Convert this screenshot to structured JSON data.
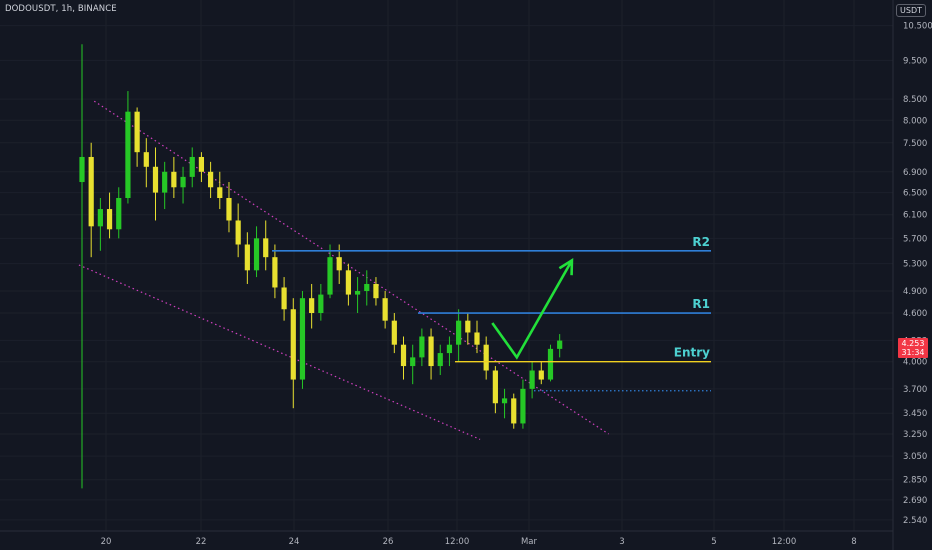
{
  "header": {
    "symbol": "DODOUSDT, 1h, BINANCE",
    "currency": "USDT"
  },
  "price_badge": {
    "value": "4.253",
    "countdown": "31:34"
  },
  "colors": {
    "background": "#131722",
    "bull": "#26c826",
    "bear": "#e8e030",
    "resistance": "#2f7fd8",
    "entry": "#f0d020",
    "trendline": "#d040c0",
    "arrow": "#22e03a",
    "label": "#4dd0d0"
  },
  "chart_data": {
    "type": "candlestick",
    "yaxis": {
      "scale": "log",
      "ylim": [
        2.46,
        11.3
      ],
      "ticks": [
        "10.500",
        "9.500",
        "8.500",
        "8.000",
        "7.500",
        "6.900",
        "6.500",
        "6.100",
        "5.700",
        "5.300",
        "4.900",
        "4.600",
        "4.253",
        "4.000",
        "3.700",
        "3.450",
        "3.250",
        "3.050",
        "2.850",
        "2.690",
        "2.540"
      ]
    },
    "xaxis": {
      "ticks": [
        "20",
        "22",
        "24",
        "26",
        "12:00",
        "Mar",
        "3",
        "5",
        "12:00",
        "8"
      ]
    },
    "levels": [
      {
        "label": "R2",
        "price": 5.5
      },
      {
        "label": "R1",
        "price": 4.6
      },
      {
        "label": "Entry",
        "price": 4.0
      }
    ],
    "support_dotted": 3.68,
    "trendlines": [
      {
        "name": "upper",
        "from": [
          "19 Feb 00:00",
          8.45
        ],
        "to": [
          "5 Mar 00:00",
          3.25
        ]
      },
      {
        "name": "lower",
        "from": [
          "18 Feb 14:00",
          5.28
        ],
        "to": [
          "1 Mar 12:00",
          3.2
        ]
      }
    ],
    "projection_path": [
      [
        "1 Mar 20:00",
        4.47
      ],
      [
        "2 Mar 12:00",
        4.05
      ],
      [
        "4 Mar 00:00",
        5.35
      ]
    ],
    "series": [
      {
        "t": 0,
        "o": 6.7,
        "h": 9.95,
        "l": 2.78,
        "c": 7.2
      },
      {
        "t": 6,
        "o": 7.2,
        "h": 7.5,
        "l": 5.4,
        "c": 5.9
      },
      {
        "t": 12,
        "o": 5.9,
        "h": 6.4,
        "l": 5.5,
        "c": 6.2
      },
      {
        "t": 18,
        "o": 6.2,
        "h": 6.5,
        "l": 5.7,
        "c": 5.85
      },
      {
        "t": 24,
        "o": 5.85,
        "h": 6.6,
        "l": 5.7,
        "c": 6.4
      },
      {
        "t": 30,
        "o": 6.4,
        "h": 8.7,
        "l": 6.3,
        "c": 8.2
      },
      {
        "t": 36,
        "o": 8.2,
        "h": 8.3,
        "l": 7.0,
        "c": 7.3
      },
      {
        "t": 42,
        "o": 7.3,
        "h": 7.6,
        "l": 6.6,
        "c": 7.0
      },
      {
        "t": 48,
        "o": 7.0,
        "h": 7.4,
        "l": 6.0,
        "c": 6.5
      },
      {
        "t": 54,
        "o": 6.5,
        "h": 7.1,
        "l": 6.2,
        "c": 6.9
      },
      {
        "t": 60,
        "o": 6.9,
        "h": 7.2,
        "l": 6.4,
        "c": 6.6
      },
      {
        "t": 66,
        "o": 6.6,
        "h": 7.0,
        "l": 6.3,
        "c": 6.8
      },
      {
        "t": 72,
        "o": 6.8,
        "h": 7.4,
        "l": 6.6,
        "c": 7.2
      },
      {
        "t": 78,
        "o": 7.2,
        "h": 7.3,
        "l": 6.7,
        "c": 6.9
      },
      {
        "t": 84,
        "o": 6.9,
        "h": 7.1,
        "l": 6.4,
        "c": 6.6
      },
      {
        "t": 90,
        "o": 6.6,
        "h": 6.9,
        "l": 6.2,
        "c": 6.4
      },
      {
        "t": 96,
        "o": 6.4,
        "h": 6.7,
        "l": 5.8,
        "c": 6.0
      },
      {
        "t": 102,
        "o": 6.0,
        "h": 6.3,
        "l": 5.4,
        "c": 5.6
      },
      {
        "t": 108,
        "o": 5.6,
        "h": 5.8,
        "l": 5.0,
        "c": 5.2
      },
      {
        "t": 114,
        "o": 5.2,
        "h": 5.9,
        "l": 5.1,
        "c": 5.7
      },
      {
        "t": 120,
        "o": 5.7,
        "h": 6.0,
        "l": 5.2,
        "c": 5.4
      },
      {
        "t": 126,
        "o": 5.4,
        "h": 5.6,
        "l": 4.8,
        "c": 4.95
      },
      {
        "t": 132,
        "o": 4.95,
        "h": 5.1,
        "l": 4.5,
        "c": 4.65
      },
      {
        "t": 138,
        "o": 4.65,
        "h": 4.8,
        "l": 3.5,
        "c": 3.8
      },
      {
        "t": 144,
        "o": 3.8,
        "h": 4.9,
        "l": 3.7,
        "c": 4.8
      },
      {
        "t": 150,
        "o": 4.8,
        "h": 5.0,
        "l": 4.4,
        "c": 4.6
      },
      {
        "t": 156,
        "o": 4.6,
        "h": 5.0,
        "l": 4.5,
        "c": 4.85
      },
      {
        "t": 162,
        "o": 4.85,
        "h": 5.6,
        "l": 4.8,
        "c": 5.4
      },
      {
        "t": 168,
        "o": 5.4,
        "h": 5.6,
        "l": 5.0,
        "c": 5.2
      },
      {
        "t": 174,
        "o": 5.2,
        "h": 5.3,
        "l": 4.7,
        "c": 4.85
      },
      {
        "t": 180,
        "o": 4.85,
        "h": 5.1,
        "l": 4.6,
        "c": 4.9
      },
      {
        "t": 186,
        "o": 4.9,
        "h": 5.2,
        "l": 4.7,
        "c": 5.0
      },
      {
        "t": 192,
        "o": 5.0,
        "h": 5.1,
        "l": 4.7,
        "c": 4.8
      },
      {
        "t": 198,
        "o": 4.8,
        "h": 4.9,
        "l": 4.4,
        "c": 4.5
      },
      {
        "t": 204,
        "o": 4.5,
        "h": 4.6,
        "l": 4.1,
        "c": 4.2
      },
      {
        "t": 210,
        "o": 4.2,
        "h": 4.3,
        "l": 3.8,
        "c": 3.95
      },
      {
        "t": 216,
        "o": 3.95,
        "h": 4.2,
        "l": 3.75,
        "c": 4.05
      },
      {
        "t": 222,
        "o": 4.05,
        "h": 4.4,
        "l": 3.95,
        "c": 4.3
      },
      {
        "t": 228,
        "o": 4.3,
        "h": 4.4,
        "l": 3.8,
        "c": 3.95
      },
      {
        "t": 234,
        "o": 3.95,
        "h": 4.2,
        "l": 3.85,
        "c": 4.1
      },
      {
        "t": 240,
        "o": 4.1,
        "h": 4.3,
        "l": 3.95,
        "c": 4.2
      },
      {
        "t": 246,
        "o": 4.2,
        "h": 4.65,
        "l": 4.0,
        "c": 4.5
      },
      {
        "t": 252,
        "o": 4.5,
        "h": 4.6,
        "l": 4.2,
        "c": 4.35
      },
      {
        "t": 258,
        "o": 4.35,
        "h": 4.5,
        "l": 4.1,
        "c": 4.2
      },
      {
        "t": 264,
        "o": 4.2,
        "h": 4.3,
        "l": 3.8,
        "c": 3.9
      },
      {
        "t": 270,
        "o": 3.9,
        "h": 3.95,
        "l": 3.45,
        "c": 3.55
      },
      {
        "t": 276,
        "o": 3.55,
        "h": 3.7,
        "l": 3.4,
        "c": 3.6
      },
      {
        "t": 282,
        "o": 3.6,
        "h": 3.65,
        "l": 3.3,
        "c": 3.35
      },
      {
        "t": 288,
        "o": 3.35,
        "h": 3.8,
        "l": 3.3,
        "c": 3.7
      },
      {
        "t": 294,
        "o": 3.7,
        "h": 4.0,
        "l": 3.6,
        "c": 3.9
      },
      {
        "t": 300,
        "o": 3.9,
        "h": 4.0,
        "l": 3.75,
        "c": 3.8
      },
      {
        "t": 306,
        "o": 3.8,
        "h": 4.2,
        "l": 3.78,
        "c": 4.15
      },
      {
        "t": 312,
        "o": 4.15,
        "h": 4.33,
        "l": 4.05,
        "c": 4.25
      }
    ]
  }
}
